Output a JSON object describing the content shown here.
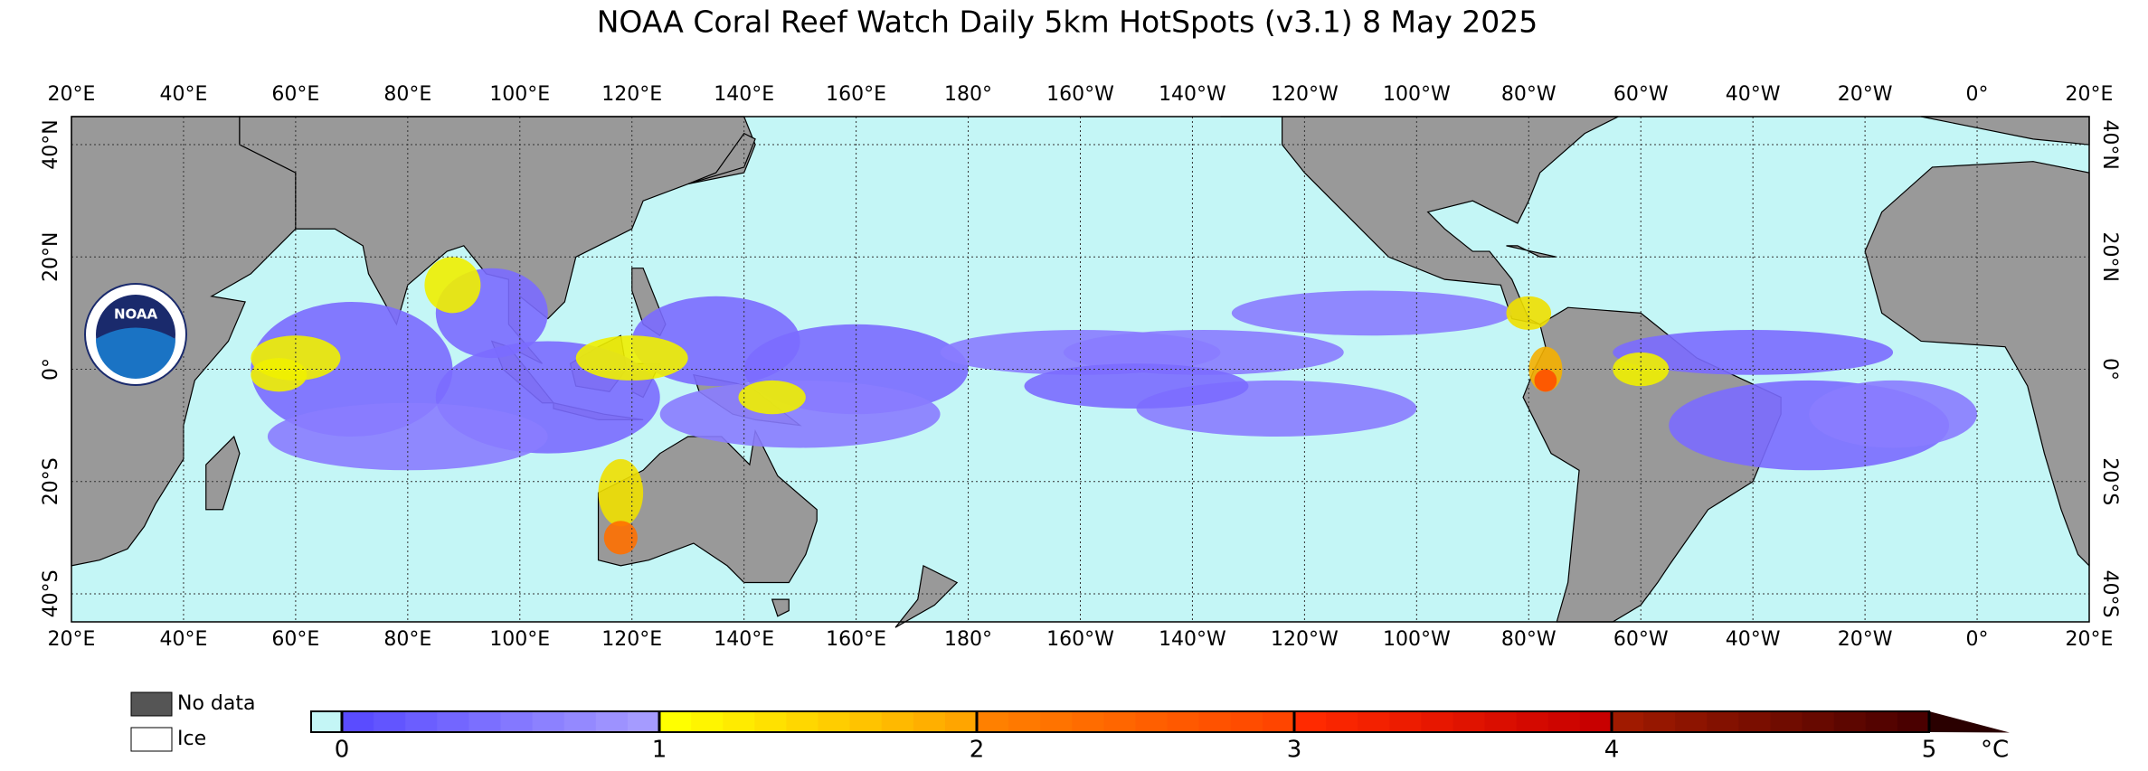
{
  "title": "NOAA Coral Reef Watch Daily 5km HotSpots  (v3.1)   8 May 2025",
  "logo": "NOAA",
  "map": {
    "xlim": [
      20,
      380
    ],
    "ylim": [
      -45,
      45
    ],
    "grid": true,
    "xticks": [
      {
        "value": 20,
        "label": "20°E"
      },
      {
        "value": 40,
        "label": "40°E"
      },
      {
        "value": 60,
        "label": "60°E"
      },
      {
        "value": 80,
        "label": "80°E"
      },
      {
        "value": 100,
        "label": "100°E"
      },
      {
        "value": 120,
        "label": "120°E"
      },
      {
        "value": 140,
        "label": "140°E"
      },
      {
        "value": 160,
        "label": "160°E"
      },
      {
        "value": 180,
        "label": "180°"
      },
      {
        "value": 200,
        "label": "160°W"
      },
      {
        "value": 220,
        "label": "140°W"
      },
      {
        "value": 240,
        "label": "120°W"
      },
      {
        "value": 260,
        "label": "100°W"
      },
      {
        "value": 280,
        "label": "80°W"
      },
      {
        "value": 300,
        "label": "60°W"
      },
      {
        "value": 320,
        "label": "40°W"
      },
      {
        "value": 340,
        "label": "20°W"
      },
      {
        "value": 360,
        "label": "0°"
      },
      {
        "value": 380,
        "label": "20°E"
      }
    ],
    "yticks": [
      {
        "value": 40,
        "label": "40°N"
      },
      {
        "value": 20,
        "label": "20°N"
      },
      {
        "value": 0,
        "label": "0°"
      },
      {
        "value": -20,
        "label": "20°S"
      },
      {
        "value": -40,
        "label": "40°S"
      }
    ]
  },
  "legend": {
    "no_data": "No data",
    "ice": "Ice"
  },
  "colorbar": {
    "lim": [
      0,
      5
    ],
    "ticks": [
      0,
      1,
      2,
      3,
      4,
      5
    ],
    "unit": "°C"
  }
}
